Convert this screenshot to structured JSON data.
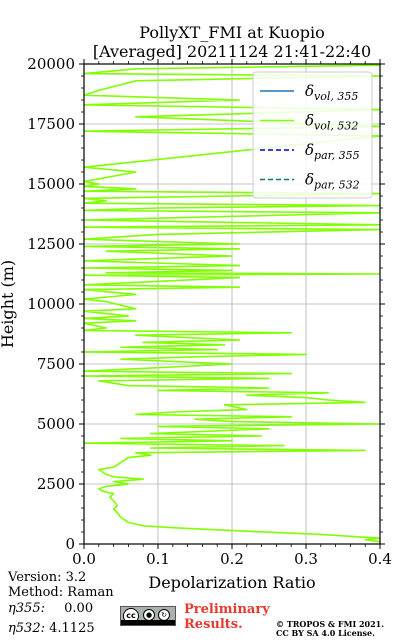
{
  "chart_data": {
    "type": "line",
    "title": "PollyXT_FMI at Kuopio",
    "subtitle": "[Averaged] 20211124 21:41-22:40",
    "xlabel": "Depolarization Ratio",
    "ylabel": "Height (m)",
    "xlim": [
      0,
      0.4
    ],
    "ylim": [
      0,
      20000
    ],
    "xticks": [
      "0.0",
      "0.1",
      "0.2",
      "0.3",
      "0.4"
    ],
    "yticks": [
      "0",
      "2500",
      "5000",
      "7500",
      "10000",
      "12500",
      "15000",
      "17500",
      "20000"
    ],
    "grid": true,
    "legend_position": "top-right",
    "legend": [
      {
        "symbol": "δ",
        "sub": "vol, 355",
        "color": "#1f77b4",
        "style": "solid"
      },
      {
        "symbol": "δ",
        "sub": "vol, 532",
        "color": "#80ff00",
        "style": "solid"
      },
      {
        "symbol": "δ",
        "sub": "par, 355",
        "color": "#0000cc",
        "style": "dashed"
      },
      {
        "symbol": "δ",
        "sub": "par, 532",
        "color": "#00805a",
        "style": "dashed"
      }
    ],
    "series": [
      {
        "name": "δvol,532",
        "color": "#80ff00",
        "points": [
          [
            0.4,
            0
          ],
          [
            0.4,
            100
          ],
          [
            0.38,
            180
          ],
          [
            0.4,
            240
          ],
          [
            0.32,
            400
          ],
          [
            0.2,
            560
          ],
          [
            0.12,
            680
          ],
          [
            0.08,
            760
          ],
          [
            0.06,
            900
          ],
          [
            0.05,
            1100
          ],
          [
            0.045,
            1300
          ],
          [
            0.04,
            1450
          ],
          [
            0.045,
            1600
          ],
          [
            0.04,
            1800
          ],
          [
            0.035,
            1950
          ],
          [
            0.04,
            2100
          ],
          [
            0.025,
            2200
          ],
          [
            0.02,
            2300
          ],
          [
            0.03,
            2400
          ],
          [
            0.06,
            2500
          ],
          [
            0.04,
            2600
          ],
          [
            0.08,
            2700
          ],
          [
            0.04,
            2800
          ],
          [
            0.03,
            2900
          ],
          [
            0.02,
            3100
          ],
          [
            0.04,
            3200
          ],
          [
            0.05,
            3400
          ],
          [
            0.06,
            3600
          ],
          [
            0.09,
            3700
          ],
          [
            0.07,
            3800
          ],
          [
            0.38,
            3900
          ],
          [
            0.09,
            4000
          ],
          [
            0.27,
            4100
          ],
          [
            0.0,
            4200
          ],
          [
            0.2,
            4300
          ],
          [
            0.05,
            4400
          ],
          [
            0.24,
            4500
          ],
          [
            0.09,
            4600
          ],
          [
            0.25,
            4800
          ],
          [
            0.1,
            4900
          ],
          [
            0.4,
            5000
          ],
          [
            0.2,
            5100
          ],
          [
            0.15,
            5200
          ],
          [
            0.28,
            5300
          ],
          [
            0.07,
            5400
          ],
          [
            0.12,
            5500
          ],
          [
            0.22,
            5600
          ],
          [
            0.19,
            5800
          ],
          [
            0.38,
            5900
          ],
          [
            0.33,
            6000
          ],
          [
            0.3,
            6100
          ],
          [
            0.22,
            6200
          ],
          [
            0.33,
            6300
          ],
          [
            0.1,
            6400
          ],
          [
            0.25,
            6500
          ],
          [
            0.06,
            6600
          ],
          [
            0.02,
            6800
          ],
          [
            0.25,
            6900
          ],
          [
            0.0,
            7000
          ],
          [
            0.28,
            7100
          ],
          [
            0.0,
            7200
          ],
          [
            0.07,
            7300
          ],
          [
            0.2,
            7500
          ],
          [
            0.05,
            7700
          ],
          [
            0.15,
            7800
          ],
          [
            0.3,
            7900
          ],
          [
            0.0,
            8000
          ],
          [
            0.18,
            8100
          ],
          [
            0.05,
            8200
          ],
          [
            0.19,
            8300
          ],
          [
            0.08,
            8400
          ],
          [
            0.21,
            8500
          ],
          [
            0.07,
            8700
          ],
          [
            0.28,
            8800
          ],
          [
            0.0,
            8900
          ],
          [
            0.03,
            9000
          ],
          [
            0.0,
            9200
          ],
          [
            0.07,
            9300
          ],
          [
            0.0,
            9400
          ],
          [
            0.06,
            9500
          ],
          [
            0.0,
            9700
          ],
          [
            0.07,
            9800
          ],
          [
            0.03,
            10100
          ],
          [
            0.0,
            10200
          ],
          [
            0.07,
            10400
          ],
          [
            0.0,
            10600
          ],
          [
            0.21,
            10700
          ],
          [
            0.0,
            10800
          ],
          [
            0.07,
            10900
          ],
          [
            0.21,
            11100
          ],
          [
            0.0,
            11200
          ],
          [
            0.4,
            11250
          ],
          [
            0.03,
            11300
          ],
          [
            0.2,
            11400
          ],
          [
            0.0,
            11500
          ],
          [
            0.21,
            11600
          ],
          [
            0.0,
            11800
          ],
          [
            0.2,
            12000
          ],
          [
            0.03,
            12200
          ],
          [
            0.21,
            12300
          ],
          [
            0.0,
            12400
          ],
          [
            0.21,
            12500
          ],
          [
            0.0,
            12700
          ],
          [
            0.1,
            12900
          ],
          [
            0.4,
            13100
          ],
          [
            0.0,
            13200
          ],
          [
            0.4,
            13300
          ],
          [
            0.0,
            13500
          ],
          [
            0.4,
            13800
          ],
          [
            0.0,
            13900
          ],
          [
            0.1,
            14000
          ],
          [
            0.4,
            14100
          ],
          [
            0.0,
            14200
          ],
          [
            0.03,
            14300
          ],
          [
            0.0,
            14400
          ],
          [
            0.4,
            14600
          ],
          [
            0.0,
            14700
          ],
          [
            0.07,
            14800
          ],
          [
            0.0,
            14900
          ],
          [
            0.02,
            15000
          ],
          [
            0.0,
            15100
          ],
          [
            0.07,
            15500
          ],
          [
            0.0,
            15700
          ],
          [
            0.4,
            17000
          ],
          [
            0.2,
            17100
          ],
          [
            0.0,
            17200
          ],
          [
            0.4,
            17400
          ],
          [
            0.07,
            17800
          ],
          [
            0.4,
            18100
          ],
          [
            0.0,
            18300
          ],
          [
            0.21,
            18500
          ],
          [
            0.0,
            18700
          ],
          [
            0.02,
            18900
          ],
          [
            0.07,
            19300
          ],
          [
            0.4,
            19500
          ],
          [
            0.0,
            19600
          ],
          [
            0.07,
            19800
          ],
          [
            0.4,
            19950
          ]
        ]
      }
    ]
  },
  "meta": {
    "version_label": "Version:",
    "version_value": "3.2",
    "method_label": "Method:",
    "method_value": "Raman",
    "eta355_label": "η355:",
    "eta355_value": "0.00",
    "eta532_label": "η532:",
    "eta532_value": "4.1125"
  },
  "badge": {
    "cc_text": "cc",
    "by_text": "BY",
    "sa_text": "SA"
  },
  "footer": {
    "preliminary_line1": "Preliminary",
    "preliminary_line2": "Results.",
    "copyright_line1": "© TROPOS & FMI 2021.",
    "copyright_line2": "CC BY SA 4.0 License."
  }
}
